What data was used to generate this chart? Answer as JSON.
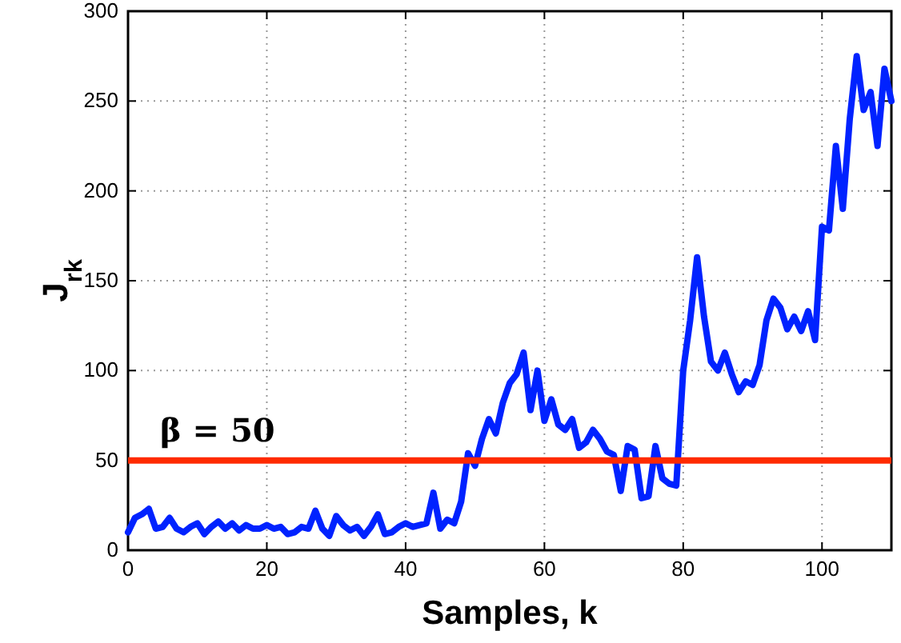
{
  "chart_data": {
    "type": "line",
    "xlabel": "Samples, k",
    "ylabel": "J$_{rk}$",
    "xlim": [
      0,
      110
    ],
    "ylim": [
      0,
      300
    ],
    "xticks": [
      0,
      20,
      40,
      60,
      80,
      100
    ],
    "yticks": [
      0,
      50,
      100,
      150,
      200,
      250,
      300
    ],
    "grid": true,
    "marker": "none",
    "line_style": "solid",
    "x": [
      0,
      1,
      2,
      3,
      4,
      5,
      6,
      7,
      8,
      9,
      10,
      11,
      12,
      13,
      14,
      15,
      16,
      17,
      18,
      19,
      20,
      21,
      22,
      23,
      24,
      25,
      26,
      27,
      28,
      29,
      30,
      31,
      32,
      33,
      34,
      35,
      36,
      37,
      38,
      39,
      40,
      41,
      42,
      43,
      44,
      45,
      46,
      47,
      48,
      49,
      50,
      51,
      52,
      53,
      54,
      55,
      56,
      57,
      58,
      59,
      60,
      61,
      62,
      63,
      64,
      65,
      66,
      67,
      68,
      69,
      70,
      71,
      72,
      73,
      74,
      75,
      76,
      77,
      78,
      79,
      80,
      81,
      82,
      83,
      84,
      85,
      86,
      87,
      88,
      89,
      90,
      91,
      92,
      93,
      94,
      95,
      96,
      97,
      98,
      99,
      100,
      101,
      102,
      103,
      104,
      105,
      106,
      107,
      108,
      109,
      110
    ],
    "series": [
      {
        "color": "#0022ff",
        "values": [
          10,
          18,
          20,
          23,
          12,
          13,
          18,
          12,
          10,
          13,
          15,
          9,
          13,
          16,
          12,
          15,
          11,
          14,
          12,
          12,
          14,
          12,
          13,
          9,
          10,
          13,
          12,
          22,
          12,
          8,
          19,
          14,
          11,
          13,
          8,
          13,
          20,
          9,
          10,
          13,
          15,
          13,
          14,
          15,
          32,
          12,
          17,
          15,
          27,
          54,
          47,
          62,
          73,
          65,
          82,
          93,
          98,
          110,
          78,
          100,
          72,
          84,
          70,
          67,
          73,
          57,
          60,
          67,
          62,
          55,
          53,
          33,
          58,
          56,
          29,
          30,
          58,
          40,
          37,
          36,
          100,
          128,
          163,
          130,
          105,
          100,
          110,
          98,
          88,
          94,
          92,
          103,
          128,
          140,
          135,
          123,
          130,
          122,
          133,
          117,
          180,
          178,
          225,
          190,
          240,
          275,
          245,
          255,
          225,
          268,
          250
        ]
      }
    ],
    "ref_lines": [
      {
        "axis": "y",
        "value": 50,
        "label": "β = 50",
        "color": "#ff2a00",
        "line_style": "solid"
      }
    ]
  }
}
